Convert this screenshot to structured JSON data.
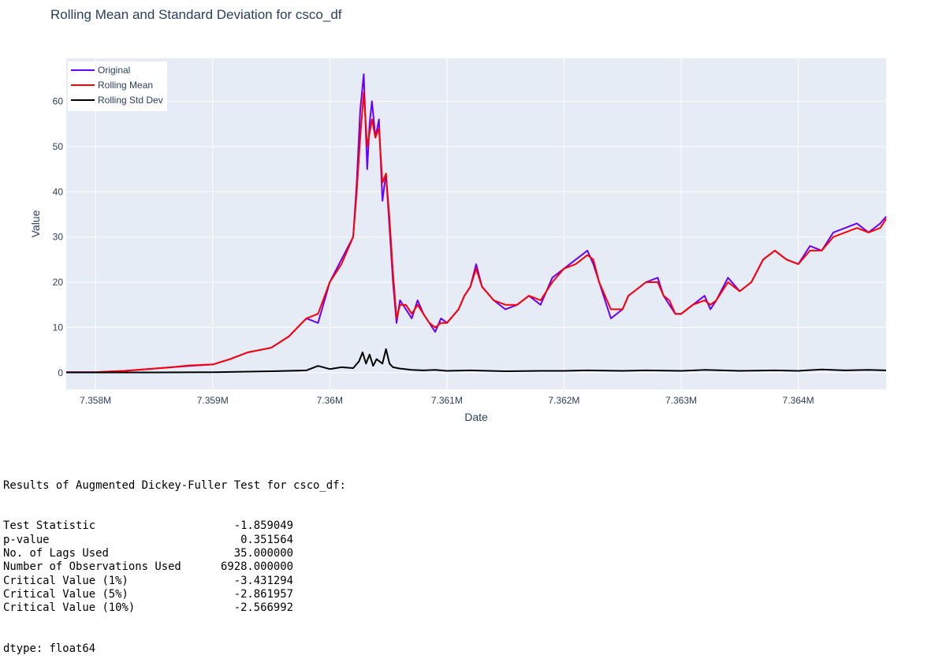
{
  "chart_data": {
    "type": "line",
    "title": "Rolling Mean and Standard Deviation for csco_df",
    "xlabel": "Date",
    "ylabel": "Value",
    "xlim": [
      7357750,
      7364750
    ],
    "ylim": [
      -3.7,
      69.5
    ],
    "x_ticks": [
      {
        "value": 7358000,
        "label": "7.358M"
      },
      {
        "value": 7359000,
        "label": "7.359M"
      },
      {
        "value": 7360000,
        "label": "7.36M"
      },
      {
        "value": 7361000,
        "label": "7.361M"
      },
      {
        "value": 7362000,
        "label": "7.362M"
      },
      {
        "value": 7363000,
        "label": "7.363M"
      },
      {
        "value": 7364000,
        "label": "7.364M"
      }
    ],
    "y_ticks": [
      0,
      10,
      20,
      30,
      40,
      50,
      60
    ],
    "grid": true,
    "legend_position": "top-left",
    "colors": {
      "plot_bg": "#e5ecf6",
      "grid": "#ffffff",
      "original": "#6a00ff",
      "rolling_mean": "#ff0000",
      "rolling_std": "#000000",
      "text": "#2a3f5f"
    },
    "series": [
      {
        "name": "Original",
        "color": "#6a00ff",
        "x": [
          7357750,
          7358000,
          7358250,
          7358500,
          7358650,
          7358800,
          7359000,
          7359150,
          7359300,
          7359500,
          7359650,
          7359800,
          7359900,
          7360000,
          7360100,
          7360200,
          7360230,
          7360260,
          7360290,
          7360320,
          7360340,
          7360360,
          7360390,
          7360420,
          7360450,
          7360480,
          7360510,
          7360540,
          7360570,
          7360600,
          7360650,
          7360700,
          7360750,
          7360800,
          7360850,
          7360900,
          7360950,
          7361000,
          7361100,
          7361150,
          7361200,
          7361250,
          7361300,
          7361400,
          7361500,
          7361600,
          7361700,
          7361800,
          7361900,
          7362000,
          7362100,
          7362200,
          7362250,
          7362300,
          7362400,
          7362450,
          7362500,
          7362550,
          7362600,
          7362700,
          7362800,
          7362850,
          7362900,
          7362950,
          7363000,
          7363100,
          7363200,
          7363250,
          7363300,
          7363400,
          7363500,
          7363600,
          7363700,
          7363800,
          7363900,
          7364000,
          7364100,
          7364200,
          7364300,
          7364400,
          7364500,
          7364600,
          7364700,
          7364750
        ],
        "y": [
          0.1,
          0.1,
          0.4,
          0.9,
          1.2,
          1.5,
          1.8,
          3,
          4.5,
          5.5,
          8,
          12,
          11,
          20,
          25,
          30,
          42,
          58,
          66,
          45,
          55,
          60,
          52,
          56,
          38,
          44,
          32,
          20,
          11,
          16,
          14,
          12,
          16,
          13,
          11,
          9,
          12,
          11,
          14,
          17,
          19,
          24,
          19,
          16,
          14,
          15,
          17,
          15,
          21,
          23,
          25,
          27,
          24,
          20,
          12,
          13,
          14,
          17,
          18,
          20,
          21,
          17,
          15,
          13,
          13,
          15,
          17,
          14,
          16,
          21,
          18,
          20,
          25,
          27,
          25,
          24,
          28,
          27,
          31,
          32,
          33,
          31,
          33,
          34.5
        ]
      },
      {
        "name": "Rolling Mean",
        "color": "#ff0000",
        "x": [
          7357750,
          7358000,
          7358250,
          7358500,
          7358650,
          7358800,
          7359000,
          7359150,
          7359300,
          7359500,
          7359650,
          7359800,
          7359900,
          7360000,
          7360100,
          7360200,
          7360230,
          7360260,
          7360290,
          7360320,
          7360340,
          7360360,
          7360390,
          7360420,
          7360450,
          7360480,
          7360510,
          7360540,
          7360570,
          7360600,
          7360650,
          7360700,
          7360750,
          7360800,
          7360850,
          7360900,
          7360950,
          7361000,
          7361100,
          7361150,
          7361200,
          7361250,
          7361300,
          7361400,
          7361500,
          7361600,
          7361700,
          7361800,
          7361900,
          7362000,
          7362100,
          7362200,
          7362250,
          7362300,
          7362400,
          7362450,
          7362500,
          7362550,
          7362600,
          7362700,
          7362800,
          7362850,
          7362900,
          7362950,
          7363000,
          7363100,
          7363200,
          7363250,
          7363300,
          7363400,
          7363500,
          7363600,
          7363700,
          7363800,
          7363900,
          7364000,
          7364100,
          7364200,
          7364300,
          7364400,
          7364500,
          7364600,
          7364700,
          7364750
        ],
        "y": [
          0.1,
          0.1,
          0.4,
          0.9,
          1.2,
          1.6,
          1.8,
          3,
          4.5,
          5.5,
          8,
          12,
          13,
          20,
          24,
          30,
          40,
          52,
          62,
          50,
          53,
          56,
          52,
          54,
          42,
          44,
          34,
          22,
          12,
          15,
          15,
          13,
          15,
          13,
          11,
          10,
          11,
          11,
          14,
          17,
          19,
          23,
          19,
          16,
          15,
          15,
          17,
          16,
          20,
          23,
          24,
          26,
          25,
          20,
          14,
          14,
          14,
          17,
          18,
          20,
          20,
          17,
          16,
          13,
          13,
          15,
          16,
          15,
          16,
          20,
          18,
          20,
          25,
          27,
          25,
          24,
          27,
          27,
          30,
          31,
          32,
          31,
          32,
          34
        ]
      },
      {
        "name": "Rolling Std Dev",
        "color": "#000000",
        "x": [
          7357750,
          7358000,
          7358500,
          7359000,
          7359500,
          7359800,
          7359900,
          7360000,
          7360100,
          7360200,
          7360250,
          7360280,
          7360310,
          7360340,
          7360370,
          7360400,
          7360450,
          7360480,
          7360510,
          7360540,
          7360600,
          7360700,
          7360800,
          7360900,
          7361000,
          7361200,
          7361500,
          7361800,
          7362000,
          7362200,
          7362500,
          7362700,
          7363000,
          7363200,
          7363500,
          7363800,
          7364000,
          7364200,
          7364400,
          7364600,
          7364750
        ],
        "y": [
          0.05,
          0.05,
          0.05,
          0.1,
          0.3,
          0.5,
          1.5,
          0.8,
          1.2,
          1.0,
          2.5,
          4.5,
          2.0,
          4.0,
          1.5,
          3.0,
          2.0,
          5.2,
          2.0,
          1.2,
          0.9,
          0.6,
          0.5,
          0.6,
          0.4,
          0.5,
          0.3,
          0.4,
          0.4,
          0.5,
          0.4,
          0.5,
          0.4,
          0.6,
          0.4,
          0.5,
          0.4,
          0.7,
          0.5,
          0.6,
          0.5
        ]
      }
    ]
  },
  "adf_output": {
    "header": "Results of Augmented Dickey-Fuller Test for csco_df:",
    "rows": [
      {
        "label": "Test Statistic",
        "value": "-1.859049"
      },
      {
        "label": "p-value",
        "value": "0.351564"
      },
      {
        "label": "No. of Lags Used",
        "value": "35.000000"
      },
      {
        "label": "Number of Observations Used",
        "value": "6928.000000"
      },
      {
        "label": "Critical Value (1%)",
        "value": "-3.431294"
      },
      {
        "label": "Critical Value (5%)",
        "value": "-2.861957"
      },
      {
        "label": "Critical Value (10%)",
        "value": "-2.566992"
      }
    ],
    "dtype": "dtype: float64"
  }
}
